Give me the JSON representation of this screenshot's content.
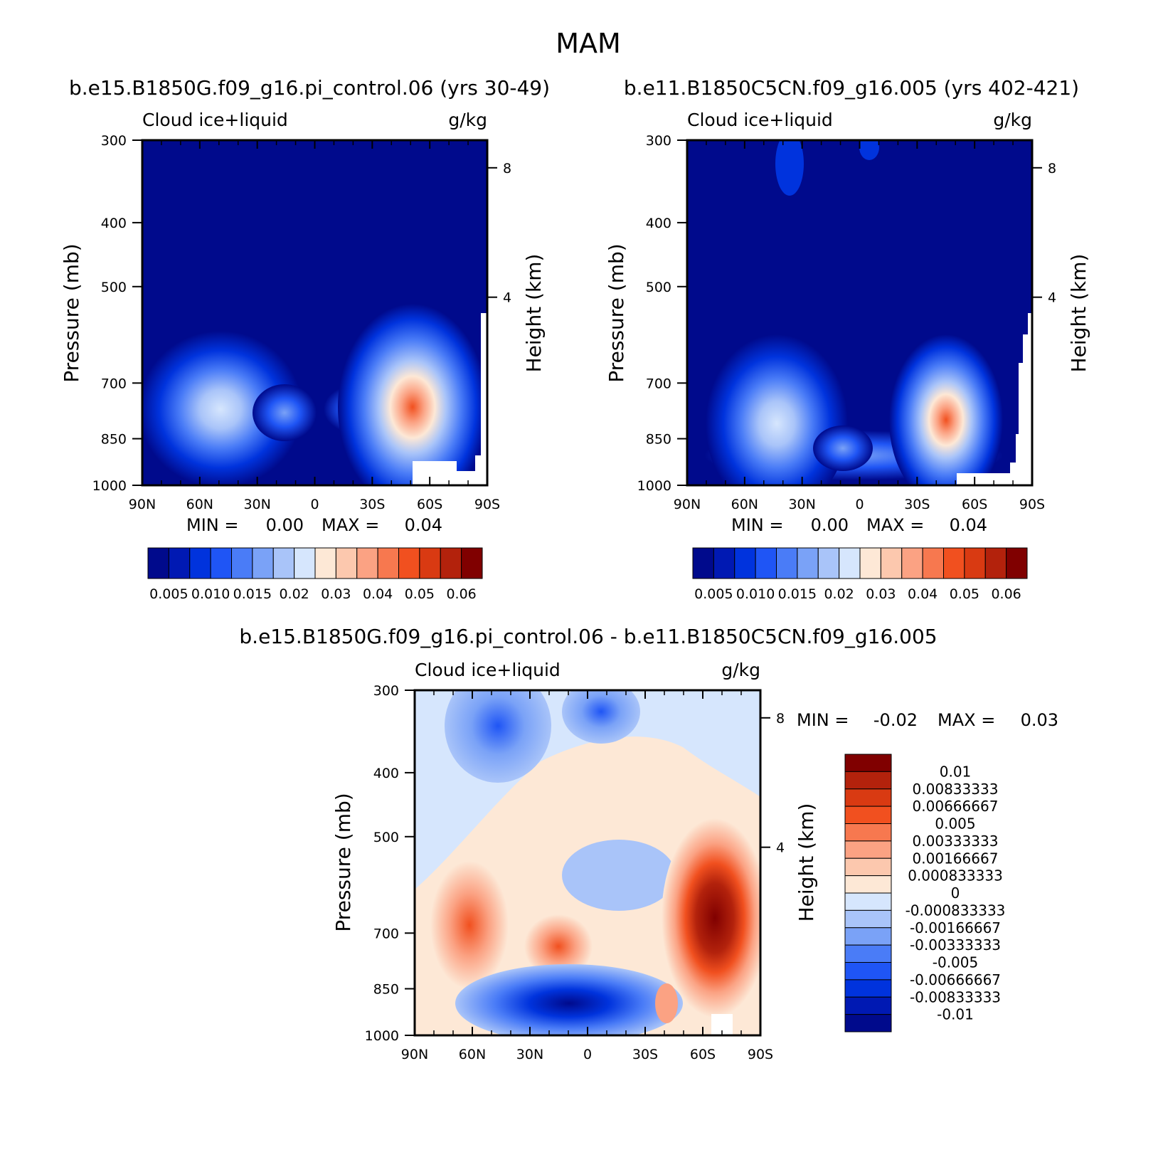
{
  "main_title": "MAM",
  "colors": {
    "field_blue": [
      "#000a8c",
      "#0019b3",
      "#0033dd",
      "#1f55f5",
      "#4a7cf7",
      "#7aa2f7",
      "#a9c4f9",
      "#d6e6fd"
    ],
    "field_red": [
      "#fde8d6",
      "#fcc8ae",
      "#fba283",
      "#f7784f",
      "#f1501f",
      "#d93a12",
      "#b3220c",
      "#800000"
    ],
    "diff_blue": [
      "#000a8c",
      "#0019b3",
      "#0033dd",
      "#1f55f5",
      "#4a7cf7",
      "#7aa2f7",
      "#a9c4f9",
      "#d6e6fd"
    ],
    "diff_red": [
      "#fde8d6",
      "#fcc8ae",
      "#fba283",
      "#f7784f",
      "#f1501f",
      "#d93a12",
      "#b3220c",
      "#800000"
    ]
  },
  "chart_data": [
    {
      "type": "heatmap",
      "title": "b.e15.B1850G.f09_g16.pi_control.06 (yrs 30-49)",
      "left_label": "Cloud ice+liquid",
      "right_label": "g/kg",
      "ylabel": "Pressure (mb)",
      "ylabel_right": "Height (km)",
      "x_ticks": [
        "90N",
        "60N",
        "30N",
        "0",
        "30S",
        "60S",
        "90S"
      ],
      "y_ticks": [
        "300",
        "400",
        "500",
        "700",
        "850",
        "1000"
      ],
      "height_ticks": [
        "8",
        "4"
      ],
      "stats": {
        "min_label": "MIN =",
        "min": "0.00",
        "max_label": "MAX =",
        "max": "0.04"
      },
      "colorbar_labels": [
        "0.005",
        "0.010",
        "0.015",
        "0.02",
        "0.03",
        "0.04",
        "0.05",
        "0.06"
      ],
      "features": [
        {
          "lat": 52,
          "p": 850,
          "value": 0.02
        },
        {
          "lat": -48,
          "p": 850,
          "value": 0.04
        }
      ]
    },
    {
      "type": "heatmap",
      "title": "b.e11.B1850C5CN.f09_g16.005 (yrs 402-421)",
      "left_label": "Cloud ice+liquid",
      "right_label": "g/kg",
      "ylabel": "Pressure (mb)",
      "ylabel_right": "Height (km)",
      "x_ticks": [
        "90N",
        "60N",
        "30N",
        "0",
        "30S",
        "60S",
        "90S"
      ],
      "y_ticks": [
        "300",
        "400",
        "500",
        "700",
        "850",
        "1000"
      ],
      "height_ticks": [
        "8",
        "4"
      ],
      "stats": {
        "min_label": "MIN =",
        "min": "0.00",
        "max_label": "MAX =",
        "max": "0.04"
      },
      "colorbar_labels": [
        "0.005",
        "0.010",
        "0.015",
        "0.02",
        "0.03",
        "0.04",
        "0.05",
        "0.06"
      ],
      "features": [
        {
          "lat": 50,
          "p": 870,
          "value": 0.02
        },
        {
          "lat": 9,
          "p": 930,
          "value": 0.02
        },
        {
          "lat": -45,
          "p": 870,
          "value": 0.04
        }
      ]
    },
    {
      "type": "heatmap",
      "title": "b.e15.B1850G.f09_g16.pi_control.06 - b.e11.B1850C5CN.f09_g16.005",
      "left_label": "Cloud ice+liquid",
      "right_label": "g/kg",
      "ylabel": "Pressure (mb)",
      "ylabel_right": "Height (km)",
      "x_ticks": [
        "90N",
        "60N",
        "30N",
        "0",
        "30S",
        "60S",
        "90S"
      ],
      "y_ticks": [
        "300",
        "400",
        "500",
        "700",
        "850",
        "1000"
      ],
      "height_ticks": [
        "8",
        "4"
      ],
      "stats": {
        "min_label": "MIN =",
        "min": "-0.02",
        "max_label": "MAX =",
        "max": "0.03"
      },
      "colorbar_labels": [
        "0.01",
        "0.00833333",
        "0.00666667",
        "0.005",
        "0.00333333",
        "0.00166667",
        "0.000833333",
        "0",
        "-0.000833333",
        "-0.00166667",
        "-0.00333333",
        "-0.005",
        "-0.00666667",
        "-0.00833333",
        "-0.01"
      ],
      "features": [
        {
          "lat": 63,
          "p": 840,
          "value": 0.005
        },
        {
          "lat": 20,
          "p": 850,
          "value": 0.006
        },
        {
          "lat": -65,
          "p": 790,
          "value": 0.01
        },
        {
          "lat": 5,
          "p": 940,
          "value": -0.01
        },
        {
          "lat": 45,
          "p": 360,
          "value": -0.005
        }
      ]
    }
  ]
}
